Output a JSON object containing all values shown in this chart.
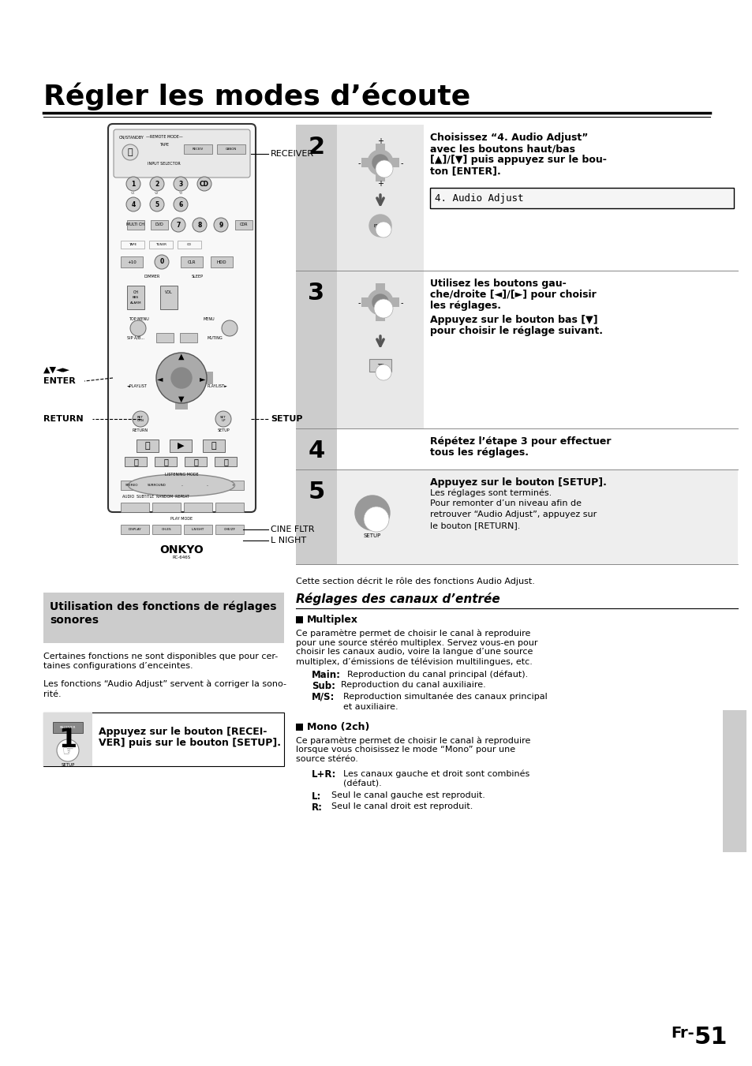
{
  "title": "Régler les modes d’écoute",
  "bg_color": "#ffffff",
  "page_number": "Fr-51",
  "page_num_prefix": "Fr-",
  "page_num_suffix": "51",
  "receiver_label": "RECEIVER",
  "setup_label": "SETUP",
  "return_label": "RETURN",
  "enter_label": "ENTER",
  "avlr_label": "▲▼◄►",
  "cine_fltr_label": "CINE FLTR",
  "l_night_label": "L NIGHT",
  "step2_num": "2",
  "step2_line1": "Choisissez “4. Audio Adjust”",
  "step2_line2": "avec les boutons haut/bas",
  "step2_line3": "[▲]/[▼] puis appuyez sur le bou-",
  "step2_line4": "ton [ENTER].",
  "step2_display": "4. Audio Adjust",
  "step3_num": "3",
  "step3_bold1": "Utilisez les boutons gau-",
  "step3_bold2": "che/droite [◄]/[►] pour choisir",
  "step3_bold3": "les réglages.",
  "step3_bold4": "Appuyez sur le bouton bas [▼]",
  "step3_bold5": "pour choisir le réglage suivant.",
  "step4_num": "4",
  "step4_bold1": "Répétez l’étape 3 pour effectuer",
  "step4_bold2": "tous les réglages.",
  "step5_num": "5",
  "step5_bold": "Appuyez sur le bouton [SETUP].",
  "step5_line1": "Les réglages sont terminés.",
  "step5_line2": "Pour remonter d’un niveau afin de",
  "step5_line3": "retrouver “Audio Adjust”, appuyez sur",
  "step5_line4": "le bouton [RETURN].",
  "note_text": "Cette section décrit le rôle des fonctions Audio Adjust.",
  "sec2_title1": "Utilisation des fonctions de réglages",
  "sec2_title2": "sonores",
  "sec2_body1a": "Certaines fonctions ne sont disponibles que pour cer-",
  "sec2_body1b": "taines configurations d’enceintes.",
  "sec2_body2a": "Les fonctions “Audio Adjust” servent à corriger la sono-",
  "sec2_body2b": "rité.",
  "step1_num": "1",
  "step1_bold1": "Appuyez sur le bouton [RECEI-",
  "step1_bold2": "VER] puis sur le bouton [SETUP].",
  "reglages_title": "Réglages des canaux d’entrée",
  "multiplex_title": "Multiplex",
  "mult_body1": "Ce paramètre permet de choisir le canal à reproduire",
  "mult_body2": "pour une source stéréo multiplex. Servez vous-en pour",
  "mult_body3": "choisir les canaux audio, voire la langue d’une source",
  "mult_body4": "multiplex, d’émissions de télévision multilingues, etc.",
  "main_lbl": "Main:",
  "main_txt": "  Reproduction du canal principal (défaut).",
  "sub_lbl": "Sub:",
  "sub_txt": "  Reproduction du canal auxiliaire.",
  "ms_lbl": "M/S:",
  "ms_txt1": "  Reproduction simultanée des canaux principal",
  "ms_txt2": "  et auxiliaire.",
  "mono_title": "Mono (2ch)",
  "mono_body1": "Ce paramètre permet de choisir le canal à reproduire",
  "mono_body2": "lorsque vous choisissez le mode “Mono” pour une",
  "mono_body3": "source stéréo.",
  "lr_lbl": "L+R:",
  "lr_txt1": "  Les canaux gauche et droit sont combinés",
  "lr_txt2": "  (défaut).",
  "l_lbl": "L:",
  "l_txt": "  Seul le canal gauche est reproduit.",
  "r_lbl": "R:",
  "r_txt": "  Seul le canal droit est reproduit.",
  "gray_sidebar_color": "#cccccc",
  "step_num_bg_dark": "#888888",
  "step_num_bg_light": "#cccccc",
  "step5_bg": "#eeeeee",
  "sec2_title_bg": "#cccccc",
  "step1_bg": "#dddddd"
}
